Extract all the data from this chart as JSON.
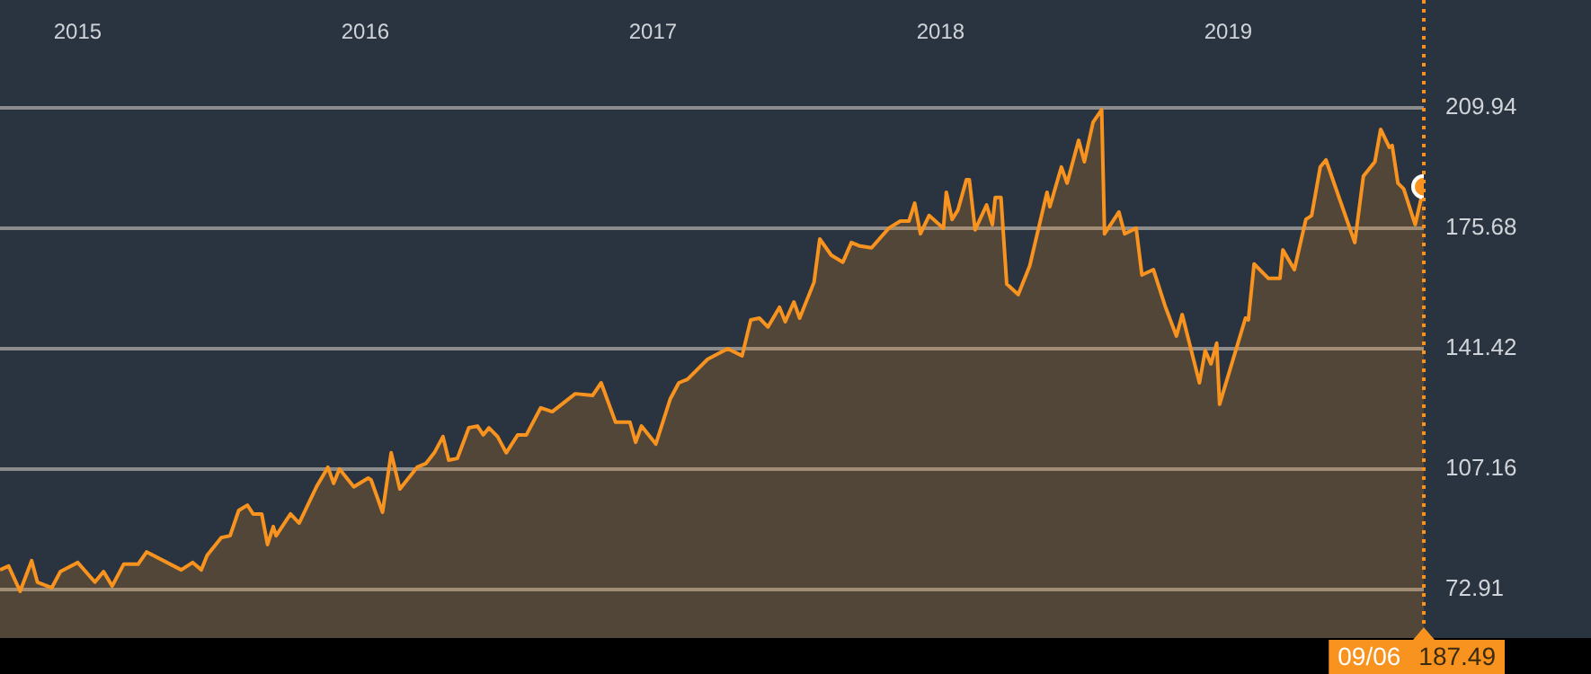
{
  "chart_data": {
    "type": "area",
    "color": "#f7931e",
    "x": [
      2014.73,
      2014.76,
      2014.8,
      2014.84,
      2014.86,
      2014.91,
      2014.94,
      2015.0,
      2015.06,
      2015.09,
      2015.12,
      2015.16,
      2015.21,
      2015.24,
      2015.36,
      2015.4,
      2015.43,
      2015.45,
      2015.5,
      2015.53,
      2015.56,
      2015.59,
      2015.61,
      2015.64,
      2015.66,
      2015.68,
      2015.69,
      2015.74,
      2015.77,
      2015.83,
      2015.87,
      2015.89,
      2015.91,
      2015.96,
      2016.01,
      2016.02,
      2016.06,
      2016.09,
      2016.12,
      2016.18,
      2016.21,
      2016.24,
      2016.27,
      2016.29,
      2016.32,
      2016.36,
      2016.39,
      2016.41,
      2016.43,
      2016.46,
      2016.49,
      2016.53,
      2016.56,
      2016.61,
      2016.65,
      2016.73,
      2016.79,
      2016.82,
      2016.87,
      2016.92,
      2016.94,
      2016.96,
      2017.01,
      2017.06,
      2017.09,
      2017.12,
      2017.19,
      2017.26,
      2017.31,
      2017.34,
      2017.37,
      2017.4,
      2017.44,
      2017.46,
      2017.49,
      2017.51,
      2017.56,
      2017.58,
      2017.62,
      2017.66,
      2017.69,
      2017.72,
      2017.76,
      2017.82,
      2017.86,
      2017.89,
      2017.91,
      2017.93,
      2017.96,
      2018.01,
      2018.02,
      2018.04,
      2018.06,
      2018.09,
      2018.1,
      2018.12,
      2018.16,
      2018.18,
      2018.19,
      2018.21,
      2018.23,
      2018.27,
      2018.31,
      2018.37,
      2018.38,
      2018.42,
      2018.44,
      2018.48,
      2018.5,
      2018.53,
      2018.56,
      2018.57,
      2018.62,
      2018.64,
      2018.68,
      2018.7,
      2018.74,
      2018.78,
      2018.82,
      2018.84,
      2018.9,
      2018.92,
      2018.94,
      2018.96,
      2018.97,
      2019.06,
      2019.07,
      2019.09,
      2019.14,
      2019.18,
      2019.19,
      2019.23,
      2019.27,
      2019.29,
      2019.32,
      2019.34,
      2019.37,
      2019.44,
      2019.47,
      2019.51,
      2019.53,
      2019.56,
      2019.57,
      2019.59,
      2019.61,
      2019.65,
      2019.68
    ],
    "values": [
      78.5,
      79.6,
      72.4,
      81.1,
      75.0,
      73.4,
      78.0,
      80.6,
      75.0,
      78.0,
      73.9,
      80.1,
      80.1,
      83.6,
      78.5,
      80.6,
      78.5,
      82.6,
      87.7,
      88.2,
      95.4,
      96.9,
      94.4,
      94.4,
      85.7,
      90.8,
      88.2,
      94.4,
      91.8,
      102.1,
      107.7,
      103.1,
      107.2,
      102.1,
      104.6,
      104.1,
      94.9,
      111.8,
      101.5,
      107.7,
      108.7,
      111.8,
      116.4,
      109.7,
      110.2,
      118.9,
      119.4,
      116.9,
      118.9,
      116.4,
      111.8,
      116.9,
      116.9,
      124.6,
      123.5,
      128.6,
      128.1,
      131.7,
      120.5,
      120.5,
      114.8,
      119.4,
      114.3,
      127.1,
      131.7,
      132.7,
      138.4,
      141.4,
      139.4,
      149.6,
      150.1,
      147.6,
      153.2,
      149.1,
      154.7,
      150.1,
      160.3,
      172.6,
      168.0,
      166.0,
      171.6,
      170.6,
      170.1,
      175.7,
      177.7,
      177.7,
      182.8,
      174.1,
      179.3,
      175.7,
      185.9,
      178.2,
      180.8,
      189.5,
      189.5,
      175.2,
      182.3,
      176.7,
      184.4,
      184.4,
      159.8,
      156.8,
      165.0,
      185.9,
      181.8,
      193.1,
      188.5,
      200.7,
      194.6,
      205.8,
      209.4,
      174.1,
      180.3,
      174.1,
      175.7,
      162.4,
      163.9,
      153.7,
      145.0,
      151.1,
      131.7,
      140.9,
      137.1,
      143.0,
      125.6,
      150.1,
      149.6,
      165.5,
      161.4,
      161.4,
      169.5,
      163.9,
      178.2,
      179.3,
      193.1,
      195.1,
      188.0,
      171.6,
      190.5,
      194.6,
      203.8,
      198.7,
      199.2,
      188.5,
      186.9,
      176.7,
      187.49
    ],
    "xlim": [
      2014.73,
      2019.68
    ],
    "xticks": [
      2015,
      2016,
      2017,
      2018,
      2019
    ],
    "ylim": [
      59.1,
      240.6
    ],
    "yticks": [
      72.91,
      107.16,
      141.42,
      175.68,
      209.94
    ],
    "grid": "y",
    "legend": false,
    "marker": "none",
    "line_style": "solid",
    "ref_lines": [
      {
        "axis": "x",
        "value": 2019.68,
        "label": null,
        "color": "#f7931e",
        "line_style": "dotted"
      }
    ],
    "annotations": [
      "09/06",
      "187.49"
    ]
  }
}
